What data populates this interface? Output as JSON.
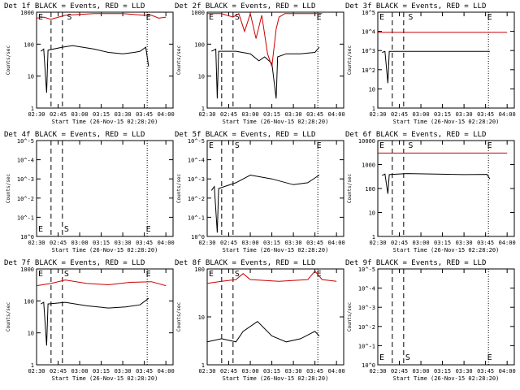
{
  "page": {
    "background": "#ffffff"
  },
  "colors": {
    "events": "#000000",
    "lld": "#cc0000",
    "axis": "#000000"
  },
  "chart_data": [
    {
      "type": "line",
      "title": "Det 1f BLACK = Events, RED = LLD",
      "ylabel": "Counts/sec",
      "xlabel": "Start Time (26-Nov-15 02:28:20)",
      "x_ticks": [
        "02:30",
        "02:45",
        "03:00",
        "03:15",
        "03:30",
        "03:45",
        "04:00"
      ],
      "y_ticks": [
        "1",
        "10",
        "100",
        "1000"
      ],
      "ylim": [
        1,
        1000
      ],
      "yscale": "log",
      "markers": {
        "S": "02:48",
        "E": "03:47"
      },
      "marker_labels": [
        {
          "text": "E",
          "x": "02:30",
          "y": 1000
        },
        {
          "text": "S",
          "x": "02:50",
          "y": 1000
        },
        {
          "text": "E",
          "x": "03:45",
          "y": 1000
        }
      ],
      "series": [
        {
          "name": "Events",
          "color": "#000000",
          "points": [
            [
              153,
              60
            ],
            [
              155,
              70
            ],
            [
              157,
              3
            ],
            [
              158,
              65
            ],
            [
              168,
              80
            ],
            [
              175,
              90
            ],
            [
              190,
              70
            ],
            [
              200,
              55
            ],
            [
              210,
              50
            ],
            [
              218,
              55
            ],
            [
              222,
              60
            ],
            [
              226,
              80
            ],
            [
              228,
              20
            ]
          ]
        },
        {
          "name": "LLD",
          "color": "#cc0000",
          "points": [
            [
              150,
              650
            ],
            [
              155,
              700
            ],
            [
              160,
              600
            ],
            [
              170,
              800
            ],
            [
              190,
              900
            ],
            [
              210,
              900
            ],
            [
              225,
              800
            ],
            [
              230,
              800
            ],
            [
              235,
              650
            ],
            [
              240,
              700
            ]
          ]
        }
      ]
    },
    {
      "type": "line",
      "title": "Det 2f BLACK = Events, RED = LLD",
      "ylabel": "Counts/sec",
      "xlabel": "Start Time (26-Nov-15 02:28:20)",
      "x_ticks": [
        "02:30",
        "02:45",
        "03:00",
        "03:15",
        "03:30",
        "03:45",
        "04:00"
      ],
      "y_ticks": [
        "1",
        "10",
        "100",
        "1000"
      ],
      "ylim": [
        1,
        1000
      ],
      "yscale": "log",
      "markers": {
        "S": "02:48",
        "E": "03:47"
      },
      "marker_labels": [
        {
          "text": "E",
          "x": "02:30",
          "y": 1000
        },
        {
          "text": "S",
          "x": "02:48",
          "y": 1000
        },
        {
          "text": "E",
          "x": "03:45",
          "y": 1000
        }
      ],
      "series": [
        {
          "name": "Events",
          "color": "#000000",
          "points": [
            [
              153,
              60
            ],
            [
              156,
              70
            ],
            [
              157,
              2
            ],
            [
              158,
              60
            ],
            [
              170,
              60
            ],
            [
              180,
              50
            ],
            [
              186,
              30
            ],
            [
              190,
              40
            ],
            [
              195,
              25
            ],
            [
              198,
              2
            ],
            [
              199,
              40
            ],
            [
              205,
              50
            ],
            [
              215,
              50
            ],
            [
              225,
              55
            ],
            [
              228,
              80
            ]
          ]
        },
        {
          "name": "LLD",
          "color": "#cc0000",
          "points": [
            [
              150,
              900
            ],
            [
              160,
              900
            ],
            [
              168,
              700
            ],
            [
              172,
              900
            ],
            [
              176,
              250
            ],
            [
              180,
              900
            ],
            [
              184,
              150
            ],
            [
              188,
              800
            ],
            [
              192,
              50
            ],
            [
              195,
              20
            ],
            [
              198,
              300
            ],
            [
              200,
              700
            ],
            [
              204,
              900
            ],
            [
              230,
              900
            ]
          ]
        }
      ]
    },
    {
      "type": "line",
      "title": "Det 3f BLACK = Events, RED = LLD",
      "ylabel": "Counts/sec",
      "xlabel": "Start Time (26-Nov-15 02:28:20)",
      "x_ticks": [
        "02:30",
        "02:45",
        "03:00",
        "03:15",
        "03:30",
        "03:45",
        "04:00"
      ],
      "y_ticks": [
        "1",
        "10",
        "10^2",
        "10^3",
        "10^4",
        "10^5"
      ],
      "ylim": [
        1,
        100000
      ],
      "yscale": "log",
      "markers": {
        "S": "02:48",
        "E": "03:47"
      },
      "marker_labels": [
        {
          "text": "E",
          "x": "02:30",
          "y": 100000
        },
        {
          "text": "S",
          "x": "02:50",
          "y": 100000
        },
        {
          "text": "E",
          "x": "03:45",
          "y": 100000
        }
      ],
      "series": [
        {
          "name": "Events",
          "color": "#000000",
          "points": [
            [
              153,
              800
            ],
            [
              155,
              900
            ],
            [
              157,
              20
            ],
            [
              158,
              900
            ],
            [
              175,
              900
            ],
            [
              200,
              900
            ],
            [
              228,
              900
            ]
          ]
        },
        {
          "name": "LLD",
          "color": "#cc0000",
          "points": [
            [
              150,
              9000
            ],
            [
              160,
              9000
            ],
            [
              200,
              9000
            ],
            [
              240,
              9000
            ]
          ]
        }
      ]
    },
    {
      "type": "line",
      "title": "Det 4f BLACK = Events, RED = LLD",
      "ylabel": "Counts/sec",
      "xlabel": "Start Time (26-Nov-15 02:28:20)",
      "x_ticks": [
        "02:30",
        "02:45",
        "03:00",
        "03:15",
        "03:30",
        "03:45",
        "04:00"
      ],
      "y_ticks": [
        "10^0",
        "10^-1",
        "10^-2",
        "10^-3",
        "10^-4",
        "10^-5"
      ],
      "ylim": [
        0,
        5
      ],
      "yscale": "log",
      "markers": {
        "S": "02:48",
        "E": "03:47"
      },
      "marker_labels": [
        {
          "text": "E",
          "x": "02:30",
          "y": 0
        },
        {
          "text": "S",
          "x": "02:48",
          "y": 0
        },
        {
          "text": "E",
          "x": "03:45",
          "y": 0
        }
      ],
      "series": []
    },
    {
      "type": "line",
      "title": "Det 5f BLACK = Events, RED = LLD",
      "ylabel": "Counts/sec",
      "xlabel": "Start Time (26-Nov-15 02:28:20)",
      "x_ticks": [
        "02:30",
        "02:45",
        "03:00",
        "03:15",
        "03:30",
        "03:45",
        "04:00"
      ],
      "y_ticks": [
        "10^0",
        "10^-1",
        "10^-2",
        "10^-3",
        "10^-4",
        "10^-5"
      ],
      "ylim": [
        0,
        5
      ],
      "yscale": "log",
      "markers": {
        "S": "02:48",
        "E": "03:47"
      },
      "marker_labels": [
        {
          "text": "E",
          "x": "02:30",
          "y": 5
        },
        {
          "text": "S",
          "x": "02:48",
          "y": 5
        },
        {
          "text": "E",
          "x": "03:45",
          "y": 5
        }
      ],
      "series": [
        {
          "name": "Events",
          "color": "#000000",
          "points": [
            [
              153,
              2.4
            ],
            [
              155,
              2.6
            ],
            [
              157,
              0.2
            ],
            [
              158,
              2.5
            ],
            [
              170,
              2.8
            ],
            [
              180,
              3.2
            ],
            [
              195,
              3.0
            ],
            [
              210,
              2.7
            ],
            [
              220,
              2.8
            ],
            [
              228,
              3.2
            ]
          ]
        }
      ]
    },
    {
      "type": "line",
      "title": "Det 6f BLACK = Events, RED = LLD",
      "ylabel": "Counts/sec",
      "xlabel": "Start Time (26-Nov-15 02:28:20)",
      "x_ticks": [
        "02:30",
        "02:45",
        "03:00",
        "03:15",
        "03:30",
        "03:45",
        "04:00"
      ],
      "y_ticks": [
        "1",
        "10",
        "100",
        "1000",
        "10000"
      ],
      "ylim": [
        1,
        10000
      ],
      "yscale": "log",
      "markers": {
        "S": "02:48",
        "E": "03:47"
      },
      "marker_labels": [
        {
          "text": "E",
          "x": "02:30",
          "y": 10000
        },
        {
          "text": "S",
          "x": "02:50",
          "y": 10000
        },
        {
          "text": "E",
          "x": "03:45",
          "y": 10000
        }
      ],
      "series": [
        {
          "name": "Events",
          "color": "#000000",
          "points": [
            [
              153,
              350
            ],
            [
              155,
              400
            ],
            [
              157,
              60
            ],
            [
              158,
              380
            ],
            [
              170,
              420
            ],
            [
              190,
              400
            ],
            [
              210,
              380
            ],
            [
              226,
              390
            ],
            [
              228,
              250
            ]
          ]
        },
        {
          "name": "LLD",
          "color": "#cc0000",
          "points": [
            [
              150,
              3000
            ],
            [
              160,
              3000
            ],
            [
              200,
              3000
            ],
            [
              240,
              3000
            ]
          ]
        }
      ]
    },
    {
      "type": "line",
      "title": "Det 7f BLACK = Events, RED = LLD",
      "ylabel": "Counts/sec",
      "xlabel": "Start Time (26-Nov-15 02:28:20)",
      "x_ticks": [
        "02:30",
        "02:45",
        "03:00",
        "03:15",
        "03:30",
        "03:45",
        "04:00"
      ],
      "y_ticks": [
        "1",
        "10",
        "100",
        "1000"
      ],
      "ylim": [
        1,
        1000
      ],
      "yscale": "log",
      "markers": {
        "S": "02:48",
        "E": "03:47"
      },
      "marker_labels": [
        {
          "text": "E",
          "x": "02:30",
          "y": 1000
        },
        {
          "text": "S",
          "x": "02:48",
          "y": 1000
        },
        {
          "text": "E",
          "x": "03:45",
          "y": 1000
        }
      ],
      "series": [
        {
          "name": "Events",
          "color": "#000000",
          "points": [
            [
              153,
              80
            ],
            [
              155,
              90
            ],
            [
              157,
              4
            ],
            [
              158,
              80
            ],
            [
              170,
              90
            ],
            [
              185,
              70
            ],
            [
              200,
              60
            ],
            [
              212,
              65
            ],
            [
              222,
              75
            ],
            [
              228,
              120
            ]
          ]
        },
        {
          "name": "LLD",
          "color": "#cc0000",
          "points": [
            [
              150,
              300
            ],
            [
              160,
              350
            ],
            [
              170,
              450
            ],
            [
              185,
              350
            ],
            [
              200,
              320
            ],
            [
              215,
              380
            ],
            [
              230,
              400
            ],
            [
              240,
              300
            ]
          ]
        }
      ]
    },
    {
      "type": "line",
      "title": "Det 8f BLACK = Events, RED = LLD",
      "ylabel": "Counts/sec",
      "xlabel": "Start Time (26-Nov-15 02:28:20)",
      "x_ticks": [
        "02:30",
        "02:45",
        "03:00",
        "03:15",
        "03:30",
        "03:45",
        "04:00"
      ],
      "y_ticks": [
        "1",
        "10",
        "100"
      ],
      "ylim": [
        1,
        100
      ],
      "yscale": "log",
      "markers": {
        "S": "02:48",
        "E": "03:47"
      },
      "marker_labels": [
        {
          "text": "E",
          "x": "02:30",
          "y": 100
        },
        {
          "text": "S",
          "x": "02:48",
          "y": 100
        },
        {
          "text": "E",
          "x": "03:45",
          "y": 100
        }
      ],
      "series": [
        {
          "name": "Events",
          "color": "#000000",
          "points": [
            [
              150,
              3
            ],
            [
              160,
              3.5
            ],
            [
              170,
              3
            ],
            [
              175,
              5
            ],
            [
              185,
              8
            ],
            [
              195,
              4
            ],
            [
              205,
              3
            ],
            [
              215,
              3.5
            ],
            [
              225,
              5
            ],
            [
              228,
              4
            ]
          ]
        },
        {
          "name": "LLD",
          "color": "#cc0000",
          "points": [
            [
              150,
              50
            ],
            [
              160,
              55
            ],
            [
              170,
              60
            ],
            [
              175,
              80
            ],
            [
              180,
              60
            ],
            [
              200,
              55
            ],
            [
              220,
              60
            ],
            [
              225,
              90
            ],
            [
              230,
              60
            ],
            [
              240,
              55
            ]
          ]
        }
      ]
    },
    {
      "type": "line",
      "title": "Det 9f BLACK = Events, RED = LLD",
      "ylabel": "Counts/sec",
      "xlabel": "Start Time (26-Nov-15 02:28:20)",
      "x_ticks": [
        "02:30",
        "02:45",
        "03:00",
        "03:15",
        "03:30",
        "03:45",
        "04:00"
      ],
      "y_ticks": [
        "10^0",
        "10^-1",
        "10^-2",
        "10^-3",
        "10^-4",
        "10^-5"
      ],
      "ylim": [
        0,
        5
      ],
      "yscale": "log",
      "markers": {
        "S": "02:48",
        "E": "03:47"
      },
      "marker_labels": [
        {
          "text": "E",
          "x": "02:30",
          "y": 0
        },
        {
          "text": "S",
          "x": "02:48",
          "y": 0
        },
        {
          "text": "E",
          "x": "03:45",
          "y": 0
        }
      ],
      "series": []
    }
  ]
}
